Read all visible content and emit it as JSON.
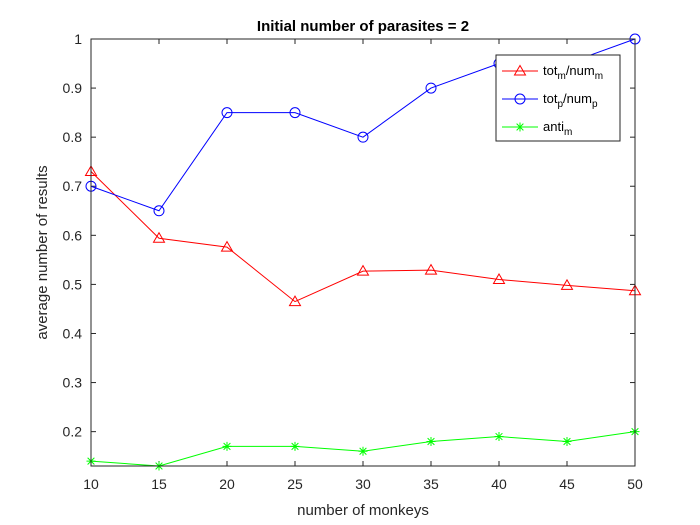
{
  "chart_data": {
    "type": "line",
    "title": "Initial number of parasites = 2",
    "xlabel": "number of monkeys",
    "ylabel": "average number of results",
    "xlim": [
      10,
      50
    ],
    "ylim": [
      0.13,
      1.0
    ],
    "xticks": [
      10,
      15,
      20,
      25,
      30,
      35,
      40,
      45,
      50
    ],
    "xtick_labels": [
      "10",
      "15",
      "20",
      "25",
      "30",
      "35",
      "40",
      "45",
      "50"
    ],
    "yticks": [
      0.2,
      0.3,
      0.4,
      0.5,
      0.6,
      0.7,
      0.8,
      0.9,
      1.0
    ],
    "ytick_labels": [
      "0.2",
      "0.3",
      "0.4",
      "0.5",
      "0.6",
      "0.7",
      "0.8",
      "0.9",
      "1"
    ],
    "grid": false,
    "legend_position": "top-right",
    "x": [
      10,
      15,
      20,
      25,
      30,
      35,
      40,
      45,
      50
    ],
    "series": [
      {
        "name": "tot_m/num_m",
        "legend": {
          "base": "tot",
          "sub1": "m",
          "mid": "/num",
          "sub2": "m"
        },
        "color": "#ff0000",
        "marker": "triangle",
        "values": [
          0.73,
          0.594,
          0.576,
          0.465,
          0.527,
          0.529,
          0.51,
          0.498,
          0.487
        ]
      },
      {
        "name": "tot_p/num_p",
        "legend": {
          "base": "tot",
          "sub1": "p",
          "mid": "/num",
          "sub2": "p"
        },
        "color": "#0000ff",
        "marker": "circle",
        "values": [
          0.7,
          0.65,
          0.85,
          0.85,
          0.8,
          0.9,
          0.95,
          0.95,
          1.0
        ]
      },
      {
        "name": "anti_m",
        "legend": {
          "base": "anti",
          "sub1": "m",
          "mid": "",
          "sub2": ""
        },
        "color": "#00ff00",
        "marker": "asterisk",
        "values": [
          0.14,
          0.13,
          0.17,
          0.17,
          0.16,
          0.18,
          0.19,
          0.18,
          0.2
        ]
      }
    ]
  }
}
